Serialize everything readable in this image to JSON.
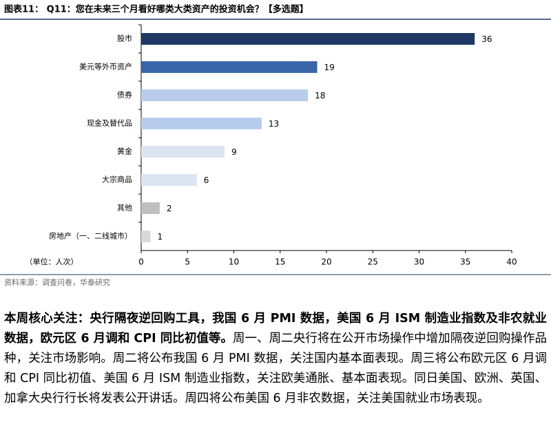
{
  "title": "图表11： Q11：您在未来三个月看好哪类大类资产的投资机会？【多选题】",
  "chart_data": {
    "type": "bar",
    "orientation": "horizontal",
    "categories": [
      "股市",
      "美元等外币资产",
      "债券",
      "现金及替代品",
      "黄金",
      "大宗商品",
      "其他",
      "房地产（一、二线城市）"
    ],
    "values": [
      36,
      19,
      18,
      13,
      9,
      6,
      2,
      1
    ],
    "colors": [
      "#1f3864",
      "#3a66a8",
      "#b8cdec",
      "#b8cdec",
      "#dbe5f1",
      "#dbe5f1",
      "#bfbfbf",
      "#d9d9d9"
    ],
    "xlim": [
      0,
      40
    ],
    "xticks": [
      0,
      5,
      10,
      15,
      20,
      25,
      30,
      35,
      40
    ],
    "unit_note": "（单位：人次）"
  },
  "source": "资料来源：调查问卷，华泰研究",
  "body": {
    "lead": "本周核心关注：央行隔夜逆回购工具，我国 6 月 PMI 数据，美国 6 月 ISM 制造业指数及非农就业数据，欧元区 6 月调和 CPI 同比初值等。",
    "text": "周一、周二央行将在公开市场操作中增加隔夜逆回购操作品种，关注市场影响。周二将公布我国 6 月 PMI 数据，关注国内基本面表现。周三将公布欧元区 6 月调和 CPI 同比初值、美国 6 月 ISM 制造业指数，关注欧美通胀、基本面表现。同日美国、欧洲、英国、加拿大央行行长将发表公开讲话。周四将公布美国 6 月非农数据，关注美国就业市场表现。"
  }
}
